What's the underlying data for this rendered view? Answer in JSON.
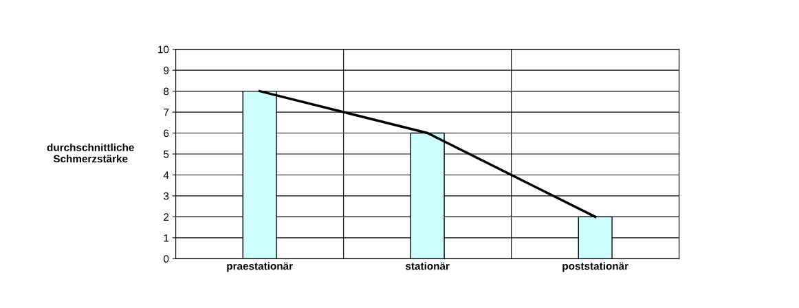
{
  "chart_data": {
    "type": "bar",
    "ylabel": "durchschnittliche\nSchmerzstärke",
    "categories": [
      "praestationär",
      "stationär",
      "poststationär"
    ],
    "series": [
      {
        "color": "#ccffff",
        "values": [
          8,
          6,
          2
        ]
      },
      {
        "type": "line",
        "color": "#000000",
        "values": [
          8,
          6,
          2
        ]
      }
    ],
    "ylim": [
      0,
      10
    ],
    "yticks": [
      0,
      1,
      2,
      3,
      4,
      5,
      6,
      7,
      8,
      9,
      10
    ],
    "grid": true,
    "legend": false,
    "marker": "none",
    "line_style": "solid"
  }
}
